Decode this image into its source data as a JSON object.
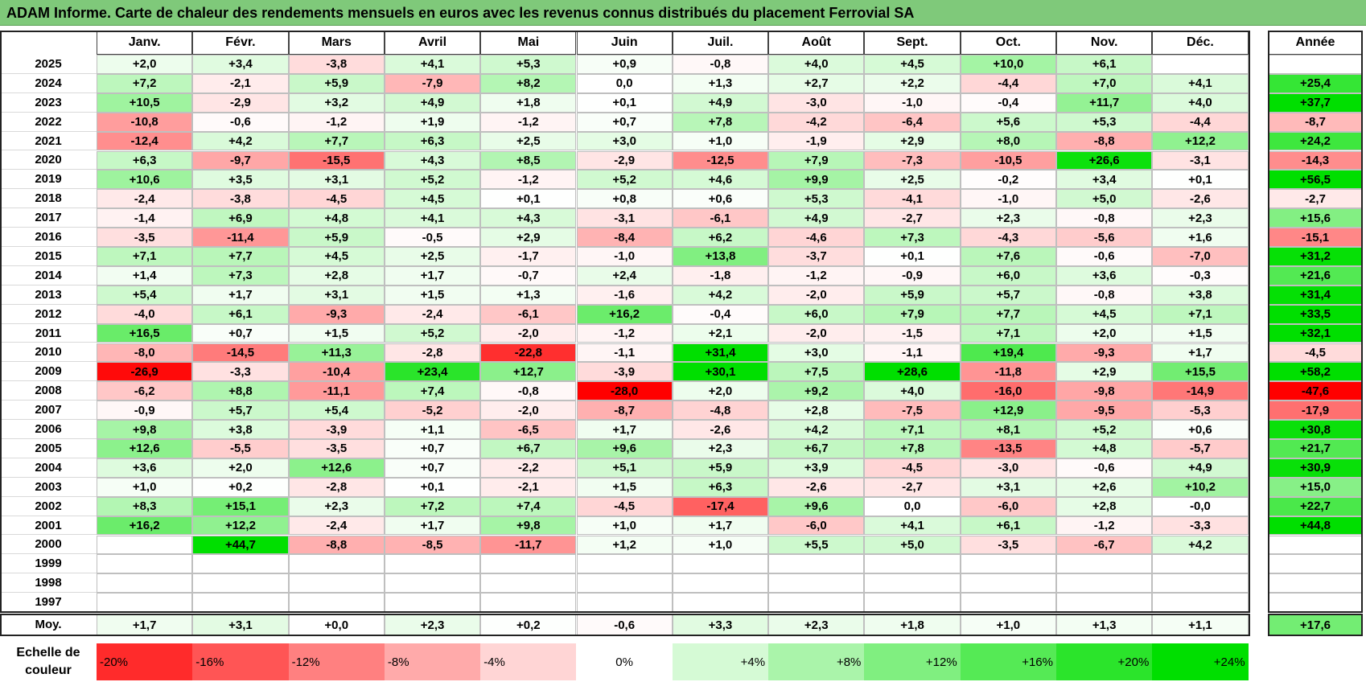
{
  "title": "ADAM Informe. Carte de chaleur des rendements mensuels en euros avec les revenus connus distribués du placement Ferrovial SA",
  "chart_data": {
    "type": "heatmap",
    "title": "ADAM Informe. Carte de chaleur des rendements mensuels en euros avec les revenus connus distribués du placement Ferrovial SA",
    "months": [
      "Janv.",
      "Févr.",
      "Mars",
      "Avril",
      "Mai",
      "Juin",
      "Juil.",
      "Août",
      "Sept.",
      "Oct.",
      "Nov.",
      "Déc."
    ],
    "year_header": "Année",
    "rows": [
      {
        "year": "2025",
        "values": [
          "+2,0",
          "+3,4",
          "-3,8",
          "+4,1",
          "+5,3",
          "+0,9",
          "-0,8",
          "+4,0",
          "+4,5",
          "+10,0",
          "+6,1",
          ""
        ],
        "annual": ""
      },
      {
        "year": "2024",
        "values": [
          "+7,2",
          "-2,1",
          "+5,9",
          "-7,9",
          "+8,2",
          "0,0",
          "+1,3",
          "+2,7",
          "+2,2",
          "-4,4",
          "+7,0",
          "+4,1"
        ],
        "annual": "+25,4"
      },
      {
        "year": "2023",
        "values": [
          "+10,5",
          "-2,9",
          "+3,2",
          "+4,9",
          "+1,8",
          "+0,1",
          "+4,9",
          "-3,0",
          "-1,0",
          "-0,4",
          "+11,7",
          "+4,0"
        ],
        "annual": "+37,7"
      },
      {
        "year": "2022",
        "values": [
          "-10,8",
          "-0,6",
          "-1,2",
          "+1,9",
          "-1,2",
          "+0,7",
          "+7,8",
          "-4,2",
          "-6,4",
          "+5,6",
          "+5,3",
          "-4,4"
        ],
        "annual": "-8,7"
      },
      {
        "year": "2021",
        "values": [
          "-12,4",
          "+4,2",
          "+7,7",
          "+6,3",
          "+2,5",
          "+3,0",
          "+1,0",
          "-1,9",
          "+2,9",
          "+8,0",
          "-8,8",
          "+12,2"
        ],
        "annual": "+24,2"
      },
      {
        "year": "2020",
        "values": [
          "+6,3",
          "-9,7",
          "-15,5",
          "+4,3",
          "+8,5",
          "-2,9",
          "-12,5",
          "+7,9",
          "-7,3",
          "-10,5",
          "+26,6",
          "-3,1"
        ],
        "annual": "-14,3"
      },
      {
        "year": "2019",
        "values": [
          "+10,6",
          "+3,5",
          "+3,1",
          "+5,2",
          "-1,2",
          "+5,2",
          "+4,6",
          "+9,9",
          "+2,5",
          "-0,2",
          "+3,4",
          "+0,1"
        ],
        "annual": "+56,5"
      },
      {
        "year": "2018",
        "values": [
          "-2,4",
          "-3,8",
          "-4,5",
          "+4,5",
          "+0,1",
          "+0,8",
          "+0,6",
          "+5,3",
          "-4,1",
          "-1,0",
          "+5,0",
          "-2,6"
        ],
        "annual": "-2,7"
      },
      {
        "year": "2017",
        "values": [
          "-1,4",
          "+6,9",
          "+4,8",
          "+4,1",
          "+4,3",
          "-3,1",
          "-6,1",
          "+4,9",
          "-2,7",
          "+2,3",
          "-0,8",
          "+2,3"
        ],
        "annual": "+15,6"
      },
      {
        "year": "2016",
        "values": [
          "-3,5",
          "-11,4",
          "+5,9",
          "-0,5",
          "+2,9",
          "-8,4",
          "+6,2",
          "-4,6",
          "+7,3",
          "-4,3",
          "-5,6",
          "+1,6"
        ],
        "annual": "-15,1"
      },
      {
        "year": "2015",
        "values": [
          "+7,1",
          "+7,7",
          "+4,5",
          "+2,5",
          "-1,7",
          "-1,0",
          "+13,8",
          "-3,7",
          "+0,1",
          "+7,6",
          "-0,6",
          "-7,0"
        ],
        "annual": "+31,2"
      },
      {
        "year": "2014",
        "values": [
          "+1,4",
          "+7,3",
          "+2,8",
          "+1,7",
          "-0,7",
          "+2,4",
          "-1,8",
          "-1,2",
          "-0,9",
          "+6,0",
          "+3,6",
          "-0,3"
        ],
        "annual": "+21,6"
      },
      {
        "year": "2013",
        "values": [
          "+5,4",
          "+1,7",
          "+3,1",
          "+1,5",
          "+1,3",
          "-1,6",
          "+4,2",
          "-2,0",
          "+5,9",
          "+5,7",
          "-0,8",
          "+3,8"
        ],
        "annual": "+31,4"
      },
      {
        "year": "2012",
        "values": [
          "-4,0",
          "+6,1",
          "-9,3",
          "-2,4",
          "-6,1",
          "+16,2",
          "-0,4",
          "+6,0",
          "+7,9",
          "+7,7",
          "+4,5",
          "+7,1"
        ],
        "annual": "+33,5"
      },
      {
        "year": "2011",
        "values": [
          "+16,5",
          "+0,7",
          "+1,5",
          "+5,2",
          "-2,0",
          "-1,2",
          "+2,1",
          "-2,0",
          "-1,5",
          "+7,1",
          "+2,0",
          "+1,5"
        ],
        "annual": "+32,1"
      },
      {
        "year": "2010",
        "values": [
          "-8,0",
          "-14,5",
          "+11,3",
          "-2,8",
          "-22,8",
          "-1,1",
          "+31,4",
          "+3,0",
          "-1,1",
          "+19,4",
          "-9,3",
          "+1,7"
        ],
        "annual": "-4,5"
      },
      {
        "year": "2009",
        "values": [
          "-26,9",
          "-3,3",
          "-10,4",
          "+23,4",
          "+12,7",
          "-3,9",
          "+30,1",
          "+7,5",
          "+28,6",
          "-11,8",
          "+2,9",
          "+15,5"
        ],
        "annual": "+58,2"
      },
      {
        "year": "2008",
        "values": [
          "-6,2",
          "+8,8",
          "-11,1",
          "+7,4",
          "-0,8",
          "-28,0",
          "+2,0",
          "+9,2",
          "+4,0",
          "-16,0",
          "-9,8",
          "-14,9"
        ],
        "annual": "-47,6"
      },
      {
        "year": "2007",
        "values": [
          "-0,9",
          "+5,7",
          "+5,4",
          "-5,2",
          "-2,0",
          "-8,7",
          "-4,8",
          "+2,8",
          "-7,5",
          "+12,9",
          "-9,5",
          "-5,3"
        ],
        "annual": "-17,9"
      },
      {
        "year": "2006",
        "values": [
          "+9,8",
          "+3,8",
          "-3,9",
          "+1,1",
          "-6,5",
          "+1,7",
          "-2,6",
          "+4,2",
          "+7,1",
          "+8,1",
          "+5,2",
          "+0,6"
        ],
        "annual": "+30,8"
      },
      {
        "year": "2005",
        "values": [
          "+12,6",
          "-5,5",
          "-3,5",
          "+0,7",
          "+6,7",
          "+9,6",
          "+2,3",
          "+6,7",
          "+7,8",
          "-13,5",
          "+4,8",
          "-5,7"
        ],
        "annual": "+21,7"
      },
      {
        "year": "2004",
        "values": [
          "+3,6",
          "+2,0",
          "+12,6",
          "+0,7",
          "-2,2",
          "+5,1",
          "+5,9",
          "+3,9",
          "-4,5",
          "-3,0",
          "-0,6",
          "+4,9"
        ],
        "annual": "+30,9"
      },
      {
        "year": "2003",
        "values": [
          "+1,0",
          "+0,2",
          "-2,8",
          "+0,1",
          "-2,1",
          "+1,5",
          "+6,3",
          "-2,6",
          "-2,7",
          "+3,1",
          "+2,6",
          "+10,2"
        ],
        "annual": "+15,0"
      },
      {
        "year": "2002",
        "values": [
          "+8,3",
          "+15,1",
          "+2,3",
          "+7,2",
          "+7,4",
          "-4,5",
          "-17,4",
          "+9,6",
          "0,0",
          "-6,0",
          "+2,8",
          "-0,0"
        ],
        "annual": "+22,7"
      },
      {
        "year": "2001",
        "values": [
          "+16,2",
          "+12,2",
          "-2,4",
          "+1,7",
          "+9,8",
          "+1,0",
          "+1,7",
          "-6,0",
          "+4,1",
          "+6,1",
          "-1,2",
          "-3,3"
        ],
        "annual": "+44,8"
      },
      {
        "year": "2000",
        "values": [
          "",
          "+44,7",
          "-8,8",
          "-8,5",
          "-11,7",
          "+1,2",
          "+1,0",
          "+5,5",
          "+5,0",
          "-3,5",
          "-6,7",
          "+4,2"
        ],
        "annual": ""
      },
      {
        "year": "1999",
        "values": [
          "",
          "",
          "",
          "",
          "",
          "",
          "",
          "",
          "",
          "",
          "",
          ""
        ],
        "annual": ""
      },
      {
        "year": "1998",
        "values": [
          "",
          "",
          "",
          "",
          "",
          "",
          "",
          "",
          "",
          "",
          "",
          ""
        ],
        "annual": ""
      },
      {
        "year": "1997",
        "values": [
          "",
          "",
          "",
          "",
          "",
          "",
          "",
          "",
          "",
          "",
          "",
          ""
        ],
        "annual": ""
      }
    ],
    "average": {
      "label": "Moy.",
      "values": [
        "+1,7",
        "+3,1",
        "+0,0",
        "+2,3",
        "+0,2",
        "-0,6",
        "+3,3",
        "+2,3",
        "+1,8",
        "+1,0",
        "+1,3",
        "+1,1"
      ],
      "annual": "+17,6"
    },
    "scale": {
      "label": "Echelle de couleur",
      "items": [
        "-20%",
        "-16%",
        "-12%",
        "-8%",
        "-4%",
        "0%",
        "+4%",
        "+8%",
        "+12%",
        "+16%",
        "+20%",
        "+24%"
      ],
      "values": [
        -20,
        -16,
        -12,
        -8,
        -4,
        0,
        4,
        8,
        12,
        16,
        20,
        24
      ]
    },
    "colors": {
      "negative": "#ff0000",
      "positive": "#00e000",
      "neutral": "#ffffff",
      "title_bg": "#7fc97a"
    }
  }
}
